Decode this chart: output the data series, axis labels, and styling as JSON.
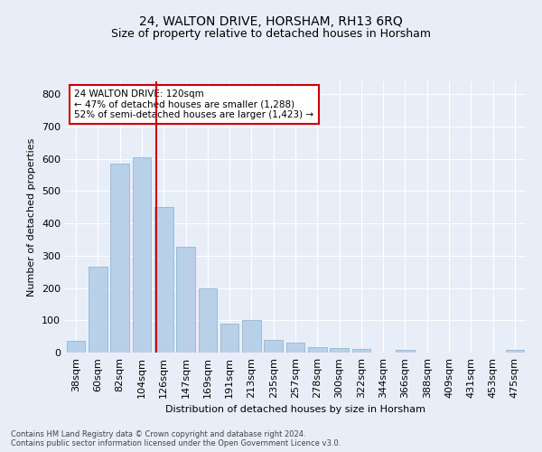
{
  "title": "24, WALTON DRIVE, HORSHAM, RH13 6RQ",
  "subtitle": "Size of property relative to detached houses in Horsham",
  "xlabel": "Distribution of detached houses by size in Horsham",
  "ylabel": "Number of detached properties",
  "categories": [
    "38sqm",
    "60sqm",
    "82sqm",
    "104sqm",
    "126sqm",
    "147sqm",
    "169sqm",
    "191sqm",
    "213sqm",
    "235sqm",
    "257sqm",
    "278sqm",
    "300sqm",
    "322sqm",
    "344sqm",
    "366sqm",
    "388sqm",
    "409sqm",
    "431sqm",
    "453sqm",
    "475sqm"
  ],
  "values": [
    37,
    265,
    585,
    605,
    450,
    328,
    198,
    90,
    100,
    38,
    30,
    18,
    15,
    10,
    0,
    8,
    0,
    0,
    0,
    0,
    8
  ],
  "bar_color": "#b8d0e8",
  "bar_edge_color": "#90b8d8",
  "vline_color": "#cc0000",
  "vline_x_index": 3.65,
  "annotation_text": "24 WALTON DRIVE: 120sqm\n← 47% of detached houses are smaller (1,288)\n52% of semi-detached houses are larger (1,423) →",
  "annotation_box_facecolor": "white",
  "annotation_box_edgecolor": "#cc0000",
  "ylim": [
    0,
    840
  ],
  "yticks": [
    0,
    100,
    200,
    300,
    400,
    500,
    600,
    700,
    800
  ],
  "footer_line1": "Contains HM Land Registry data © Crown copyright and database right 2024.",
  "footer_line2": "Contains public sector information licensed under the Open Government Licence v3.0.",
  "bg_color": "#e8eef8",
  "plot_bg_color": "#e8eef8",
  "grid_color": "#ffffff",
  "title_fontsize": 10,
  "subtitle_fontsize": 9,
  "axis_label_fontsize": 8,
  "tick_fontsize": 8,
  "annotation_fontsize": 7.5,
  "footer_fontsize": 6
}
